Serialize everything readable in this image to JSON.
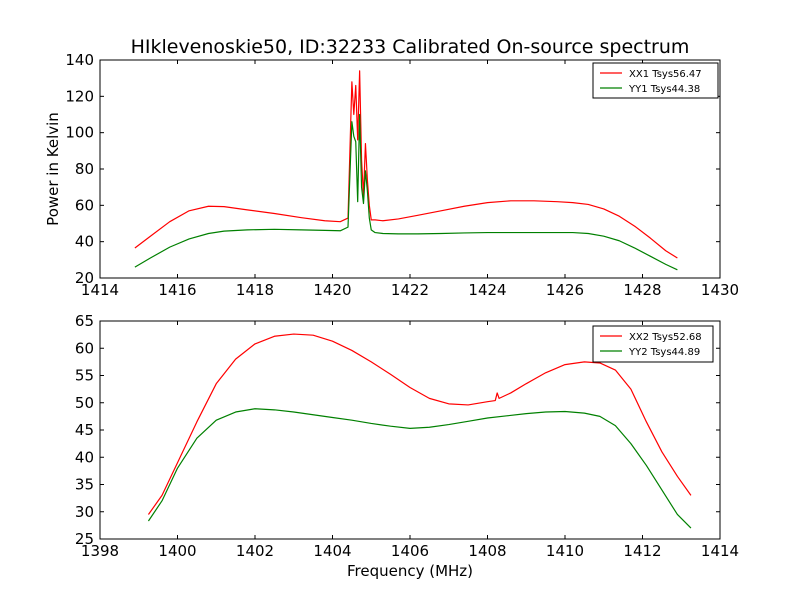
{
  "figure": {
    "title": "HIklevenoskie50, ID:32233 Calibrated On-source spectrum",
    "xlabel": "Frequency (MHz)",
    "ylabel": "Power in Kelvin"
  },
  "chart_data": [
    {
      "type": "line",
      "title": "HIklevenoskie50, ID:32233 Calibrated On-source spectrum",
      "xlabel": "",
      "ylabel": "Power in Kelvin",
      "xlim": [
        1414,
        1430
      ],
      "ylim": [
        20,
        140
      ],
      "xticks": [
        1414,
        1416,
        1418,
        1420,
        1422,
        1424,
        1426,
        1428,
        1430
      ],
      "yticks": [
        20,
        40,
        60,
        80,
        100,
        120,
        140
      ],
      "grid": false,
      "legend": "top-right",
      "series": [
        {
          "name": "XX1 Tsys56.47",
          "color": "#ff0000",
          "x": [
            1414.9,
            1415.3,
            1415.8,
            1416.3,
            1416.8,
            1417.2,
            1417.8,
            1418.5,
            1419.2,
            1419.8,
            1420.2,
            1420.4,
            1420.5,
            1420.55,
            1420.6,
            1420.65,
            1420.7,
            1420.75,
            1420.8,
            1420.85,
            1420.9,
            1420.95,
            1421.0,
            1421.1,
            1421.3,
            1421.7,
            1422.2,
            1422.8,
            1423.4,
            1424.0,
            1424.6,
            1425.2,
            1425.8,
            1426.2,
            1426.6,
            1427.0,
            1427.4,
            1427.8,
            1428.2,
            1428.6,
            1428.9
          ],
          "y": [
            36.5,
            43,
            51,
            57,
            59.5,
            59.3,
            57.5,
            55.5,
            53.2,
            51.5,
            51,
            53,
            128,
            110,
            126,
            96,
            134,
            85,
            65,
            94,
            74,
            60,
            52,
            52,
            51.5,
            52.5,
            54.5,
            57,
            59.5,
            61.5,
            62.5,
            62.5,
            62,
            61.5,
            60.5,
            58,
            54,
            48.5,
            42,
            35,
            31
          ]
        },
        {
          "name": "YY1 Tsys44.38",
          "color": "#008000",
          "x": [
            1414.9,
            1415.3,
            1415.8,
            1416.3,
            1416.8,
            1417.2,
            1417.8,
            1418.5,
            1419.2,
            1419.8,
            1420.2,
            1420.4,
            1420.5,
            1420.55,
            1420.6,
            1420.65,
            1420.7,
            1420.75,
            1420.8,
            1420.85,
            1420.9,
            1420.95,
            1421.0,
            1421.1,
            1421.3,
            1421.7,
            1422.2,
            1422.8,
            1423.4,
            1424.0,
            1424.6,
            1425.2,
            1425.8,
            1426.2,
            1426.6,
            1427.0,
            1427.4,
            1427.8,
            1428.2,
            1428.6,
            1428.9
          ],
          "y": [
            26,
            31,
            37,
            41.5,
            44.5,
            45.8,
            46.5,
            46.8,
            46.5,
            46.2,
            46,
            48,
            106,
            98,
            95,
            62,
            110,
            70,
            61,
            79,
            68,
            53,
            46.5,
            45,
            44.5,
            44.3,
            44.3,
            44.5,
            44.8,
            45,
            45,
            45,
            45,
            45,
            44.5,
            43,
            40.5,
            36.5,
            32,
            27.5,
            24.5
          ]
        }
      ]
    },
    {
      "type": "line",
      "title": "",
      "xlabel": "Frequency (MHz)",
      "ylabel": "",
      "xlim": [
        1398,
        1414
      ],
      "ylim": [
        25,
        65
      ],
      "xticks": [
        1398,
        1400,
        1402,
        1404,
        1406,
        1408,
        1410,
        1412,
        1414
      ],
      "yticks": [
        25,
        30,
        35,
        40,
        45,
        50,
        55,
        60,
        65
      ],
      "grid": false,
      "legend": "top-right",
      "series": [
        {
          "name": "XX2 Tsys52.68",
          "color": "#ff0000",
          "x": [
            1399.25,
            1399.6,
            1400.0,
            1400.5,
            1401.0,
            1401.5,
            1402.0,
            1402.5,
            1403.0,
            1403.5,
            1404.0,
            1404.5,
            1405.0,
            1405.5,
            1406.0,
            1406.5,
            1407.0,
            1407.5,
            1408.0,
            1408.2,
            1408.25,
            1408.3,
            1408.6,
            1409.0,
            1409.5,
            1410.0,
            1410.5,
            1410.9,
            1411.3,
            1411.7,
            1412.1,
            1412.5,
            1412.9,
            1413.25
          ],
          "y": [
            29.5,
            33,
            39,
            46.5,
            53.5,
            58,
            60.8,
            62.2,
            62.6,
            62.4,
            61.3,
            59.6,
            57.5,
            55.2,
            52.8,
            50.8,
            49.8,
            49.6,
            50.2,
            50.4,
            51.8,
            50.8,
            51.8,
            53.5,
            55.5,
            57,
            57.5,
            57.3,
            56,
            52.5,
            46.5,
            41,
            36.5,
            33
          ]
        },
        {
          "name": "YY2 Tsys44.89",
          "color": "#008000",
          "x": [
            1399.25,
            1399.6,
            1400.0,
            1400.5,
            1401.0,
            1401.5,
            1402.0,
            1402.5,
            1403.0,
            1403.5,
            1404.0,
            1404.5,
            1405.0,
            1405.5,
            1406.0,
            1406.5,
            1407.0,
            1407.5,
            1408.0,
            1408.5,
            1409.0,
            1409.5,
            1410.0,
            1410.5,
            1410.9,
            1411.3,
            1411.7,
            1412.1,
            1412.5,
            1412.9,
            1413.25
          ],
          "y": [
            28.3,
            32,
            38,
            43.5,
            46.8,
            48.3,
            48.9,
            48.7,
            48.3,
            47.8,
            47.3,
            46.8,
            46.2,
            45.7,
            45.3,
            45.5,
            46,
            46.6,
            47.2,
            47.6,
            48,
            48.3,
            48.4,
            48.1,
            47.5,
            45.8,
            42.5,
            38.5,
            34,
            29.5,
            27
          ]
        }
      ]
    }
  ]
}
